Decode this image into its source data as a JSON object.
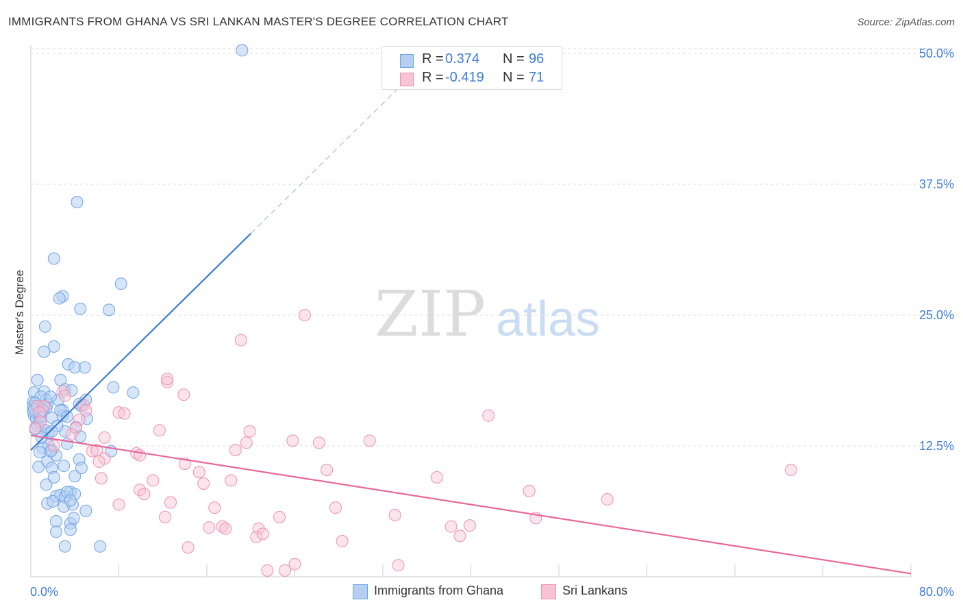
{
  "title": "IMMIGRANTS FROM GHANA VS SRI LANKAN MASTER'S DEGREE CORRELATION CHART",
  "source": "Source: ZipAtlas.com",
  "watermark": {
    "zip": "ZIP",
    "atlas": "atlas"
  },
  "legend": {
    "rows": [
      {
        "r_label": "R =",
        "r_value": "0.374",
        "n_label": "N =",
        "n_value": "96",
        "color": "#6fa3e6",
        "fill": "#b5cff3"
      },
      {
        "r_label": "R =",
        "r_value": "-0.419",
        "n_label": "N =",
        "n_value": "71",
        "color": "#ef8fb0",
        "fill": "#f7c3d5"
      }
    ]
  },
  "bottom_legend": [
    "Immigrants from Ghana",
    "Sri Lankans"
  ],
  "colors": {
    "blue": "#3a7bd5",
    "pink": "#e8679a",
    "blue_fill": "#b5cff3",
    "pink_fill": "#f7c3d5",
    "text_value": "#3a7bd5",
    "axis_label": "#333333"
  },
  "chart_data": {
    "type": "scatter",
    "title": "IMMIGRANTS FROM GHANA VS SRI LANKAN MASTER'S DEGREE CORRELATION CHART",
    "ylabel": "Master's Degree",
    "xlabel": "",
    "xlim": [
      0,
      80
    ],
    "ylim": [
      0,
      50
    ],
    "x_tick_labels": [
      "0.0%",
      "80.0%"
    ],
    "y_ticks": [
      12.5,
      25.0,
      37.5,
      50.0
    ],
    "y_tick_labels": [
      "12.5%",
      "25.0%",
      "37.5%",
      "50.0%"
    ],
    "grid": true,
    "series": [
      {
        "name": "Immigrants from Ghana",
        "r": 0.374,
        "n": 96,
        "trend": {
          "x0": 0.0,
          "y0": 12.1,
          "x1": 20.0,
          "y1": 32.8,
          "dashed_to_x": 35.0
        },
        "points": [
          [
            19.2,
            50.3
          ],
          [
            4.2,
            35.8
          ],
          [
            2.1,
            30.4
          ],
          [
            8.2,
            28.0
          ],
          [
            2.9,
            26.8
          ],
          [
            2.6,
            26.6
          ],
          [
            4.5,
            25.6
          ],
          [
            7.1,
            25.5
          ],
          [
            1.3,
            23.9
          ],
          [
            2.1,
            22.0
          ],
          [
            1.2,
            21.5
          ],
          [
            3.4,
            20.3
          ],
          [
            4.0,
            20.0
          ],
          [
            4.9,
            20.0
          ],
          [
            0.6,
            18.8
          ],
          [
            0.3,
            17.6
          ],
          [
            1.2,
            17.7
          ],
          [
            1.4,
            16.9
          ],
          [
            2.7,
            18.8
          ],
          [
            3.1,
            17.9
          ],
          [
            3.7,
            17.8
          ],
          [
            0.9,
            17.2
          ],
          [
            1.5,
            16.5
          ],
          [
            0.2,
            16.7
          ],
          [
            0.5,
            16.2
          ],
          [
            1.4,
            16.1
          ],
          [
            1.0,
            15.8
          ],
          [
            0.3,
            15.4
          ],
          [
            0.9,
            15.6
          ],
          [
            2.9,
            15.9
          ],
          [
            4.4,
            16.5
          ],
          [
            5.0,
            16.9
          ],
          [
            7.5,
            18.1
          ],
          [
            9.3,
            17.6
          ],
          [
            0.5,
            15.1
          ],
          [
            0.8,
            14.9
          ],
          [
            1.9,
            15.2
          ],
          [
            2.9,
            15.4
          ],
          [
            5.1,
            15.1
          ],
          [
            4.6,
            16.3
          ],
          [
            0.2,
            16.3
          ],
          [
            0.4,
            16.6
          ],
          [
            2.5,
            16.9
          ],
          [
            1.3,
            14.0
          ],
          [
            1.6,
            13.7
          ],
          [
            0.6,
            14.4
          ],
          [
            0.9,
            15.3
          ],
          [
            1.6,
            12.6
          ],
          [
            1.1,
            12.3
          ],
          [
            1.9,
            12.1
          ],
          [
            3.1,
            13.9
          ],
          [
            4.1,
            14.3
          ],
          [
            7.3,
            12.0
          ],
          [
            0.7,
            10.5
          ],
          [
            1.5,
            11.0
          ],
          [
            2.3,
            11.6
          ],
          [
            3.3,
            12.7
          ],
          [
            4.4,
            11.2
          ],
          [
            4.0,
            9.6
          ],
          [
            1.9,
            10.4
          ],
          [
            1.4,
            8.8
          ],
          [
            2.1,
            9.5
          ],
          [
            4.6,
            10.4
          ],
          [
            2.3,
            7.7
          ],
          [
            2.7,
            7.8
          ],
          [
            3.1,
            7.6
          ],
          [
            1.5,
            7.0
          ],
          [
            2.0,
            7.2
          ],
          [
            3.6,
            8.1
          ],
          [
            4.0,
            7.9
          ],
          [
            3.0,
            6.7
          ],
          [
            3.8,
            6.9
          ],
          [
            5.0,
            6.3
          ],
          [
            2.3,
            5.3
          ],
          [
            3.6,
            5.1
          ],
          [
            3.9,
            5.6
          ],
          [
            2.3,
            4.3
          ],
          [
            3.6,
            4.5
          ],
          [
            3.1,
            2.9
          ],
          [
            6.3,
            2.9
          ],
          [
            0.4,
            14.1
          ],
          [
            0.2,
            15.8
          ],
          [
            1.8,
            17.2
          ],
          [
            2.7,
            15.9
          ],
          [
            3.3,
            15.3
          ],
          [
            1.0,
            13.3
          ],
          [
            1.8,
            12.0
          ],
          [
            0.8,
            11.9
          ],
          [
            3.0,
            10.6
          ],
          [
            3.3,
            8.1
          ],
          [
            3.6,
            7.3
          ],
          [
            4.5,
            13.4
          ],
          [
            0.3,
            16.0
          ],
          [
            1.1,
            15.9
          ],
          [
            2.4,
            14.4
          ],
          [
            1.9,
            13.9
          ]
        ]
      },
      {
        "name": "Sri Lankans",
        "r": -0.419,
        "n": 71,
        "trend": {
          "x0": 0.0,
          "y0": 13.5,
          "x1": 80.0,
          "y1": 0.3
        },
        "points": [
          [
            24.9,
            25.0
          ],
          [
            19.1,
            22.6
          ],
          [
            12.4,
            18.6
          ],
          [
            12.4,
            18.9
          ],
          [
            13.9,
            17.4
          ],
          [
            2.9,
            17.7
          ],
          [
            3.1,
            17.3
          ],
          [
            4.8,
            16.4
          ],
          [
            0.6,
            16.3
          ],
          [
            1.2,
            16.3
          ],
          [
            5.0,
            15.9
          ],
          [
            0.8,
            15.7
          ],
          [
            8.0,
            15.7
          ],
          [
            8.5,
            15.6
          ],
          [
            4.4,
            15.0
          ],
          [
            0.9,
            14.8
          ],
          [
            41.6,
            15.4
          ],
          [
            0.4,
            14.2
          ],
          [
            4.1,
            14.2
          ],
          [
            11.7,
            14.0
          ],
          [
            19.9,
            13.9
          ],
          [
            6.7,
            13.3
          ],
          [
            23.8,
            13.0
          ],
          [
            19.6,
            12.8
          ],
          [
            26.2,
            12.8
          ],
          [
            30.8,
            13.0
          ],
          [
            2.1,
            12.5
          ],
          [
            5.6,
            12.0
          ],
          [
            6.0,
            12.1
          ],
          [
            18.6,
            12.1
          ],
          [
            9.6,
            11.8
          ],
          [
            9.9,
            11.6
          ],
          [
            14.0,
            10.8
          ],
          [
            6.7,
            11.3
          ],
          [
            15.3,
            10.0
          ],
          [
            26.9,
            10.2
          ],
          [
            69.1,
            10.2
          ],
          [
            6.4,
            9.4
          ],
          [
            11.1,
            9.2
          ],
          [
            18.2,
            9.2
          ],
          [
            36.9,
            9.5
          ],
          [
            15.7,
            8.9
          ],
          [
            9.9,
            8.3
          ],
          [
            10.3,
            7.9
          ],
          [
            45.3,
            8.2
          ],
          [
            52.4,
            7.4
          ],
          [
            8.0,
            6.9
          ],
          [
            12.7,
            7.1
          ],
          [
            16.7,
            6.6
          ],
          [
            27.7,
            6.6
          ],
          [
            12.2,
            5.7
          ],
          [
            22.6,
            5.7
          ],
          [
            33.1,
            5.9
          ],
          [
            45.9,
            5.6
          ],
          [
            16.2,
            4.7
          ],
          [
            17.4,
            4.8
          ],
          [
            17.7,
            4.6
          ],
          [
            20.7,
            4.6
          ],
          [
            20.5,
            3.8
          ],
          [
            38.2,
            4.8
          ],
          [
            39.9,
            4.9
          ],
          [
            21.1,
            4.1
          ],
          [
            39.0,
            3.9
          ],
          [
            28.3,
            3.4
          ],
          [
            14.3,
            2.8
          ],
          [
            24.0,
            1.2
          ],
          [
            33.4,
            1.1
          ],
          [
            21.5,
            0.6
          ],
          [
            23.1,
            0.6
          ],
          [
            3.7,
            13.6
          ],
          [
            6.2,
            11.0
          ]
        ]
      }
    ]
  }
}
